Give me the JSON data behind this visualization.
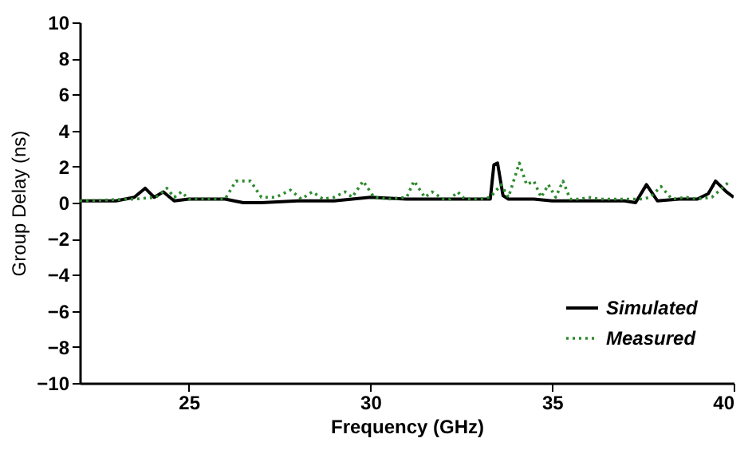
{
  "chart_data": {
    "type": "line",
    "xlabel": "Frequency (GHz)",
    "ylabel": "Group Delay (ns)",
    "xlim": [
      22,
      40
    ],
    "xticks": [
      25,
      30,
      35,
      40
    ],
    "ylim": [
      -10,
      10
    ],
    "yticks": [
      -10,
      -8,
      -6,
      -4,
      -2,
      0,
      2,
      4,
      6,
      8,
      10
    ],
    "grid": false,
    "legend": "bottom right",
    "series": [
      {
        "name": "Simulated",
        "color": "#000000",
        "line_style": "solid",
        "x": [
          22,
          23,
          23.5,
          23.8,
          24.05,
          24.3,
          24.6,
          25,
          26,
          26.5,
          27,
          28,
          29,
          30,
          31,
          32,
          33,
          33.3,
          33.4,
          33.5,
          33.65,
          33.8,
          34.5,
          35,
          36,
          37,
          37.3,
          37.6,
          37.9,
          38.5,
          39,
          39.3,
          39.5,
          39.8,
          40
        ],
        "values": [
          0.1,
          0.1,
          0.3,
          0.8,
          0.3,
          0.6,
          0.1,
          0.2,
          0.2,
          0,
          0,
          0.1,
          0.1,
          0.3,
          0.2,
          0.2,
          0.2,
          0.2,
          2.1,
          2.2,
          0.4,
          0.2,
          0.2,
          0.1,
          0.1,
          0.1,
          0,
          1,
          0.1,
          0.2,
          0.2,
          0.5,
          1.2,
          0.6,
          0.3
        ]
      },
      {
        "name": "Measured",
        "color": "#2e8b2e",
        "line_style": "dotted",
        "x": [
          22,
          23.5,
          24.1,
          24.4,
          24.6,
          24.8,
          25,
          26,
          26.3,
          26.7,
          27,
          27.4,
          27.8,
          28.1,
          28.4,
          28.7,
          29,
          29.3,
          29.5,
          29.8,
          30.1,
          30.5,
          31,
          31.2,
          31.5,
          31.7,
          32,
          32.2,
          32.4,
          32.6,
          33,
          33.3,
          33.6,
          33.8,
          34.1,
          34.3,
          34.5,
          34.7,
          34.9,
          35.1,
          35.3,
          35.5,
          35.8,
          36,
          36.3,
          37,
          37.5,
          37.7,
          38,
          38.3,
          38.7,
          39,
          39.4,
          39.9
        ],
        "values": [
          0.1,
          0.2,
          0.3,
          0.8,
          0.3,
          0.6,
          0.2,
          0.2,
          1.2,
          1.2,
          0.3,
          0.3,
          0.7,
          0.2,
          0.6,
          0.2,
          0.3,
          0.6,
          0.3,
          1.2,
          0.3,
          0.2,
          0.3,
          1.2,
          0.3,
          0.6,
          0.2,
          0.2,
          0.6,
          0.2,
          0.2,
          0.3,
          1.0,
          0.3,
          2.2,
          1.0,
          1.2,
          0.3,
          1.0,
          0.3,
          1.2,
          0.2,
          0.2,
          0.3,
          0.2,
          0.2,
          0.2,
          0.3,
          0.9,
          0.2,
          0.3,
          0.2,
          0.3,
          1.2
        ]
      }
    ]
  }
}
